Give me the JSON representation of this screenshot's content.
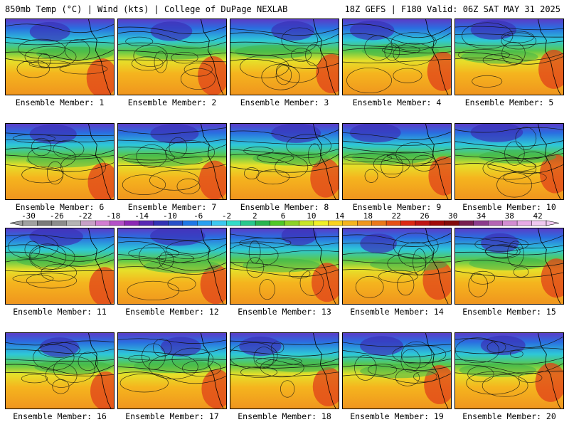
{
  "header": {
    "left": "850mb Temp (°C) | Wind (kts) | College of DuPage NEXLAB",
    "right": "18Z GEFS | F180 Valid: 06Z SAT MAY 31 2025"
  },
  "members": [
    "Ensemble Member: 1",
    "Ensemble Member: 2",
    "Ensemble Member: 3",
    "Ensemble Member: 4",
    "Ensemble Member: 5",
    "Ensemble Member: 6",
    "Ensemble Member: 7",
    "Ensemble Member: 8",
    "Ensemble Member: 9",
    "Ensemble Member: 10",
    "Ensemble Member: 11",
    "Ensemble Member: 12",
    "Ensemble Member: 13",
    "Ensemble Member: 14",
    "Ensemble Member: 15",
    "Ensemble Member: 16",
    "Ensemble Member: 17",
    "Ensemble Member: 18",
    "Ensemble Member: 19",
    "Ensemble Member: 20"
  ],
  "colorbar": {
    "ticks": [
      "-30",
      "-26",
      "-22",
      "-18",
      "-14",
      "-10",
      "-6",
      "-2",
      "2",
      "6",
      "10",
      "14",
      "18",
      "22",
      "26",
      "30",
      "34",
      "38",
      "42"
    ],
    "colors": [
      "#a0a0a0",
      "#7a7a7a",
      "#8c8c8c",
      "#b4b4b4",
      "#c8a0c8",
      "#d27dd2",
      "#b450c8",
      "#8c28b4",
      "#5a28b4",
      "#3232b4",
      "#2850c8",
      "#1e78e6",
      "#28a0f0",
      "#3cc8f0",
      "#32dcc8",
      "#28c88c",
      "#28b450",
      "#50c828",
      "#8cd228",
      "#c8e628",
      "#f0f028",
      "#fad21e",
      "#f5b41e",
      "#f0961e",
      "#eb7819",
      "#e65014",
      "#dc2814",
      "#be1414",
      "#a00a0a",
      "#820a0a",
      "#781e50",
      "#8c3c8c",
      "#b464b4",
      "#d28cd2",
      "#e6aae6",
      "#f0c8f0"
    ]
  }
}
